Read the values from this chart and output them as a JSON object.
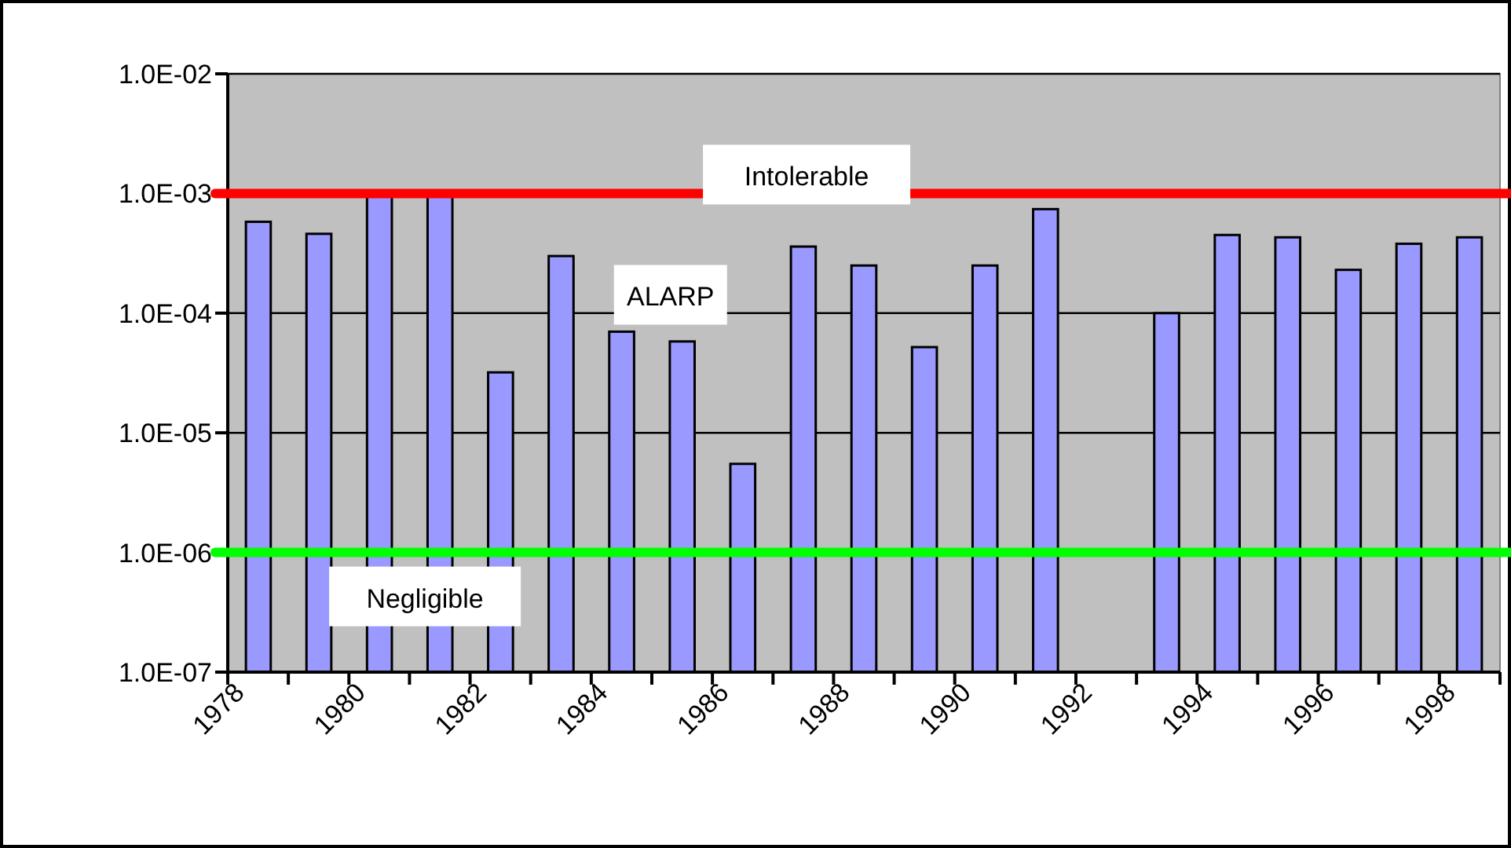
{
  "chart_data": {
    "type": "bar",
    "categories": [
      "1978",
      null,
      "1980",
      null,
      "1982",
      null,
      "1984",
      null,
      "1986",
      null,
      "1988",
      null,
      "1990",
      null,
      "1992",
      null,
      "1994",
      null,
      "1996",
      null,
      "1998"
    ],
    "values": [
      0.00058,
      0.00046,
      0.001,
      0.001,
      3.2e-05,
      0.0003,
      7e-05,
      5.8e-05,
      5.5e-06,
      0.00036,
      0.00025,
      5.2e-05,
      0.00025,
      0.00074,
      null,
      0.0001,
      0.00045,
      0.00043,
      0.00023,
      0.00038,
      0.00043
    ],
    "color": "#9999ff",
    "log": true,
    "ylim": [
      1e-07,
      0.01
    ],
    "yticks": [
      {
        "value": 1e-07,
        "label": "1.0E-07"
      },
      {
        "value": 1e-06,
        "label": "1.0E-06"
      },
      {
        "value": 1e-05,
        "label": "1.0E-05"
      },
      {
        "value": 0.0001,
        "label": "1.0E-04"
      },
      {
        "value": 0.001,
        "label": "1.0E-03"
      },
      {
        "value": 0.01,
        "label": "1.0E-02"
      }
    ],
    "grid": "y",
    "ref_lines": [
      {
        "axis": "y",
        "value": 0.001,
        "label": "Intolerable",
        "color": "#ff0000"
      },
      {
        "axis": "y",
        "value": 1e-06,
        "label": "Negligible",
        "color": "#00ff00"
      }
    ],
    "annotations": [
      "ALARP"
    ]
  }
}
